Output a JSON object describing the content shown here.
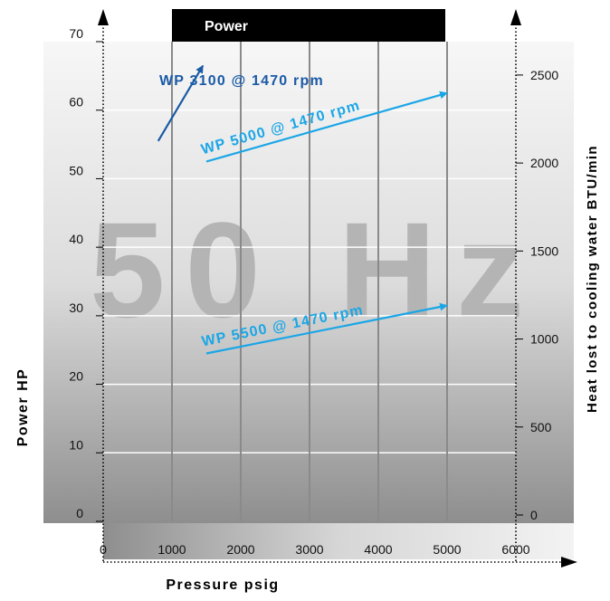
{
  "chart_data": {
    "type": "line",
    "title": "Power",
    "xlabel": "Pressure psig",
    "ylabel": "Power HP",
    "y2label": "Heat lost to cooling water BTU/min",
    "watermark": "50 Hz",
    "xlim": [
      0,
      6000
    ],
    "ylim": [
      0,
      70
    ],
    "y2lim": [
      0,
      2700
    ],
    "x_ticks": [
      0,
      1000,
      2000,
      3000,
      4000,
      5000,
      6000
    ],
    "y_ticks": [
      0,
      10,
      20,
      30,
      40,
      50,
      60,
      70
    ],
    "y2_ticks": [
      0,
      500,
      1000,
      1500,
      2000,
      2500
    ],
    "grid": true,
    "series": [
      {
        "name": "WP 3100 @ 1470 rpm",
        "color": "#1a5aa6",
        "x": [
          800,
          1450
        ],
        "y": [
          55.5,
          66.5
        ]
      },
      {
        "name": "WP 5000 @ 1470 rpm",
        "color": "#1aa6e6",
        "x": [
          1500,
          5000
        ],
        "y": [
          52.5,
          62.5
        ]
      },
      {
        "name": "WP 5500 @ 1470 rpm",
        "color": "#1aa6e6",
        "x": [
          1500,
          5000
        ],
        "y": [
          24.5,
          31.5
        ]
      }
    ]
  }
}
